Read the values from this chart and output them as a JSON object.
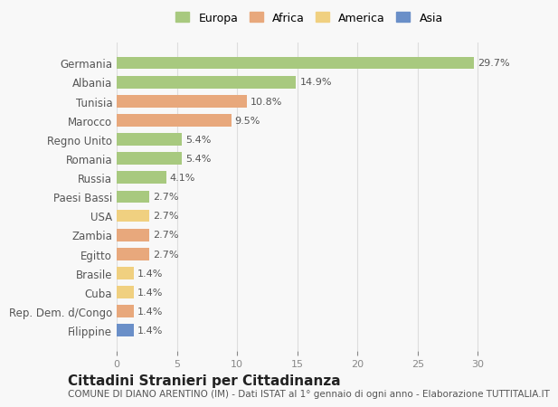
{
  "categories": [
    "Filippine",
    "Rep. Dem. d/Congo",
    "Cuba",
    "Brasile",
    "Egitto",
    "Zambia",
    "USA",
    "Paesi Bassi",
    "Russia",
    "Romania",
    "Regno Unito",
    "Marocco",
    "Tunisia",
    "Albania",
    "Germania"
  ],
  "values": [
    1.4,
    1.4,
    1.4,
    1.4,
    2.7,
    2.7,
    2.7,
    2.7,
    4.1,
    5.4,
    5.4,
    9.5,
    10.8,
    14.9,
    29.7
  ],
  "continents": [
    "Asia",
    "Africa",
    "America",
    "America",
    "Africa",
    "Africa",
    "America",
    "Europa",
    "Europa",
    "Europa",
    "Europa",
    "Africa",
    "Africa",
    "Europa",
    "Europa"
  ],
  "colors": {
    "Europa": "#a8c97f",
    "Africa": "#e8a87c",
    "America": "#f0d080",
    "Asia": "#6a8fc8"
  },
  "legend_labels": [
    "Europa",
    "Africa",
    "America",
    "Asia"
  ],
  "legend_colors": [
    "#a8c97f",
    "#e8a87c",
    "#f0d080",
    "#6a8fc8"
  ],
  "title": "Cittadini Stranieri per Cittadinanza",
  "subtitle": "COMUNE DI DIANO ARENTINO (IM) - Dati ISTAT al 1° gennaio di ogni anno - Elaborazione TUTTITALIA.IT",
  "xlim": [
    0,
    32
  ],
  "xticks": [
    0,
    5,
    10,
    15,
    20,
    25,
    30
  ],
  "background_color": "#f8f8f8",
  "bar_height": 0.65,
  "value_label_fontsize": 8,
  "category_fontsize": 8.5,
  "title_fontsize": 11,
  "subtitle_fontsize": 7.5
}
